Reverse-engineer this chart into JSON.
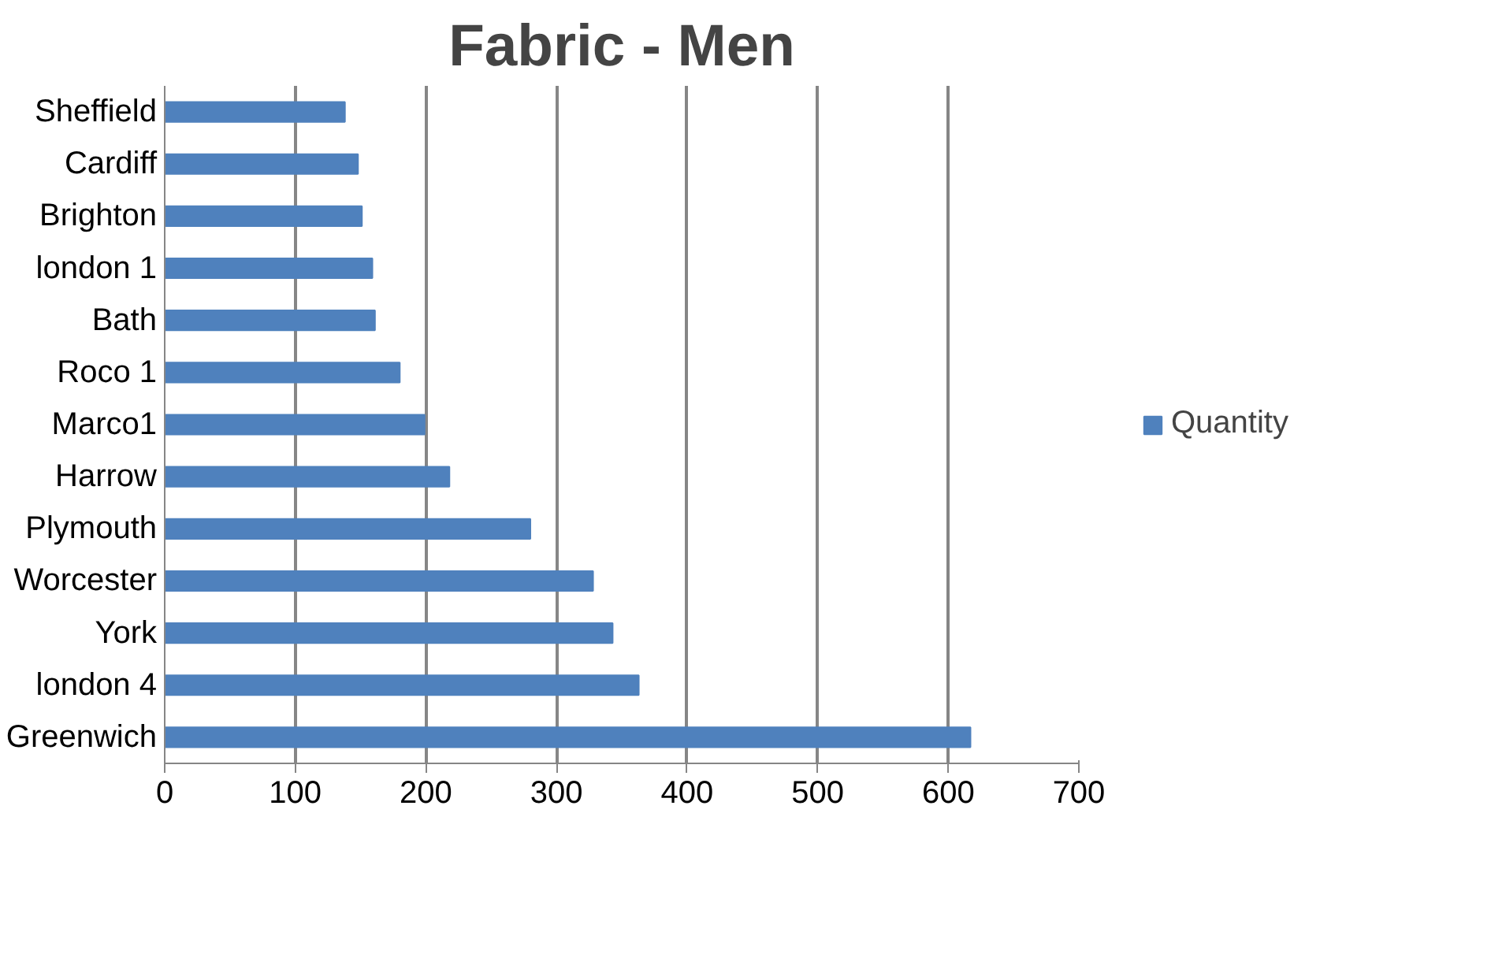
{
  "chart_data": {
    "type": "bar",
    "orientation": "horizontal",
    "title": "Fabric - Men",
    "categories": [
      "Sheffield",
      "Cardiff",
      "Brighton",
      "london 1",
      "Bath",
      "Roco 1",
      "Marco1",
      "Harrow",
      "Plymouth",
      "Worcester",
      "York",
      "london 4",
      "Greenwich"
    ],
    "series": [
      {
        "name": "Quantity",
        "color": "#4f81bd",
        "values": [
          138,
          148,
          151,
          159,
          161,
          180,
          199,
          218,
          280,
          328,
          343,
          363,
          617
        ]
      }
    ],
    "xlim": [
      0,
      700
    ],
    "xticks": [
      0,
      100,
      200,
      300,
      400,
      500,
      600,
      700
    ],
    "grid": "x",
    "legend": "right"
  }
}
